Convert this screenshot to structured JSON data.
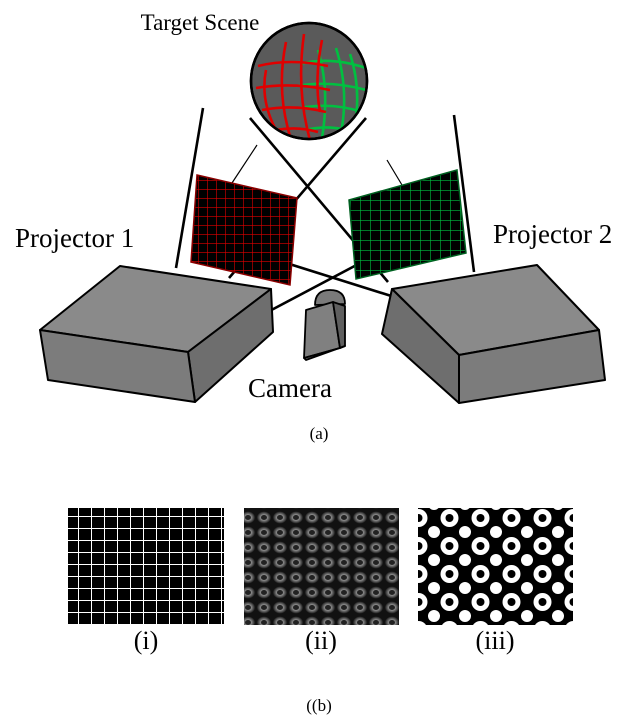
{
  "labels": {
    "target_scene": "Target Scene",
    "projector_1": "Projector 1",
    "projector_2": "Projector 2",
    "camera": "Camera",
    "caption_a": "(a)",
    "caption_b": "((b)"
  },
  "patterns": [
    {
      "label": "(i)"
    },
    {
      "label": "(ii)"
    },
    {
      "label": "(iii)"
    }
  ],
  "colors": {
    "projector_gray": "#808080",
    "scene_gray": "#5a5a5a",
    "red_grid": "#e00000",
    "green_grid": "#00c040"
  }
}
